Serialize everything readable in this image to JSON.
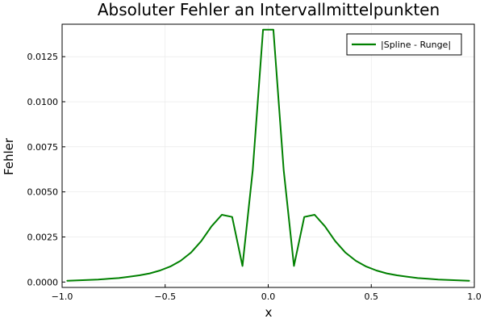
{
  "chart_data": {
    "type": "line",
    "title": "Absoluter Fehler an Intervallmittelpunkten",
    "xlabel": "x",
    "ylabel": "Fehler",
    "xlim": [
      -1.0,
      1.0
    ],
    "ylim": [
      -0.0003,
      0.0143
    ],
    "xticks": [
      -1.0,
      -0.5,
      0.0,
      0.5,
      1.0
    ],
    "xtick_labels": [
      "−1.0",
      "−0.5",
      "0.0",
      "0.5",
      "1.0"
    ],
    "yticks": [
      0.0,
      0.0025,
      0.005,
      0.0075,
      0.01,
      0.0125
    ],
    "ytick_labels": [
      "0.0000",
      "0.0025",
      "0.0050",
      "0.0075",
      "0.0100",
      "0.0125"
    ],
    "grid": true,
    "legend_position": "top-right",
    "series": [
      {
        "name": "|Spline - Runge|",
        "color": "#008000",
        "x": [
          -0.975,
          -0.925,
          -0.875,
          -0.825,
          -0.775,
          -0.725,
          -0.675,
          -0.625,
          -0.575,
          -0.525,
          -0.475,
          -0.425,
          -0.375,
          -0.325,
          -0.275,
          -0.225,
          -0.175,
          -0.125,
          -0.075,
          -0.025,
          0.025,
          0.075,
          0.125,
          0.175,
          0.225,
          0.275,
          0.325,
          0.375,
          0.425,
          0.475,
          0.525,
          0.575,
          0.625,
          0.675,
          0.725,
          0.775,
          0.825,
          0.875,
          0.925,
          0.975
        ],
        "y": [
          7e-05,
          9e-05,
          0.00011,
          0.00014,
          0.00018,
          0.00022,
          0.00029,
          0.00037,
          0.00048,
          0.00064,
          0.00086,
          0.00118,
          0.00163,
          0.00227,
          0.00309,
          0.00373,
          0.00361,
          0.00089,
          0.0062,
          0.014,
          0.014,
          0.0062,
          0.00089,
          0.00361,
          0.00373,
          0.00309,
          0.00227,
          0.00163,
          0.00118,
          0.00086,
          0.00064,
          0.00048,
          0.00037,
          0.00029,
          0.00022,
          0.00018,
          0.00014,
          0.00011,
          9e-05,
          7e-05
        ]
      }
    ]
  }
}
